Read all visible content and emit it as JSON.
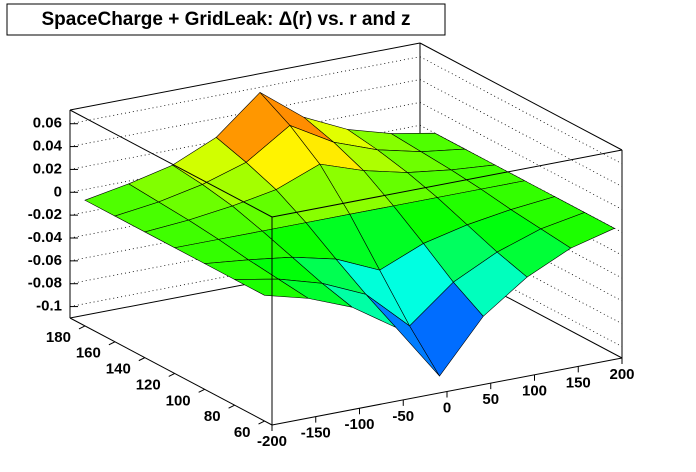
{
  "chart_data": {
    "type": "surface",
    "title": "SpaceCharge + GridLeak: Δ(r) vs. r and z",
    "x": [
      -200,
      -150,
      -100,
      -50,
      0,
      50,
      100,
      150,
      200
    ],
    "y": [
      60,
      80,
      100,
      120,
      140,
      160,
      180
    ],
    "values": [
      [
        0,
        -0.01,
        -0.025,
        -0.05,
        -0.1,
        -0.055,
        -0.028,
        -0.01,
        0
      ],
      [
        0,
        -0.007,
        -0.018,
        -0.035,
        -0.07,
        -0.039,
        -0.02,
        -0.007,
        0
      ],
      [
        0,
        -0.004,
        -0.009,
        -0.018,
        -0.035,
        -0.019,
        -0.01,
        -0.004,
        0
      ],
      [
        0,
        0,
        0,
        0,
        0,
        0,
        0,
        0,
        0
      ],
      [
        0,
        0.003,
        0.008,
        0.015,
        0.03,
        0.017,
        0.008,
        0.003,
        0
      ],
      [
        0,
        0.005,
        0.013,
        0.025,
        0.05,
        0.028,
        0.014,
        0.005,
        0
      ],
      [
        0,
        0.007,
        0.016,
        0.033,
        0.065,
        0.036,
        0.018,
        0.007,
        0
      ]
    ],
    "xlim": [
      -200,
      200
    ],
    "xticks": [
      -200,
      -150,
      -100,
      -50,
      0,
      50,
      100,
      150,
      200
    ],
    "ylim": [
      55,
      190
    ],
    "yticks": [
      60,
      80,
      100,
      120,
      140,
      160,
      180
    ],
    "zlim": [
      -0.11,
      0.072
    ],
    "zticks": [
      0.06,
      0.04,
      0.02,
      0,
      -0.02,
      -0.04,
      -0.06,
      -0.08,
      -0.1
    ],
    "grid": true
  }
}
